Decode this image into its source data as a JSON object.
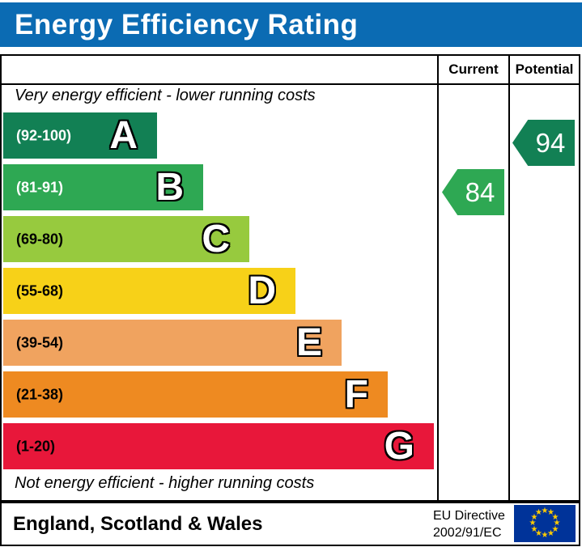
{
  "title": "Energy Efficiency Rating",
  "columns": {
    "current": "Current",
    "potential": "Potential"
  },
  "top_note": "Very energy efficient - lower running costs",
  "bottom_note": "Not energy efficient - higher running costs",
  "footer": {
    "region": "England, Scotland & Wales",
    "directive_line1": "EU Directive",
    "directive_line2": "2002/91/EC"
  },
  "colors": {
    "title_bar": "#0b6bb3",
    "eu_flag_bg": "#003399",
    "eu_flag_stars": "#ffcc00",
    "border": "#000000"
  },
  "chart_data": {
    "type": "bar",
    "title": "Energy Efficiency Rating",
    "categories": [
      "A",
      "B",
      "C",
      "D",
      "E",
      "F",
      "G"
    ],
    "bands": [
      {
        "letter": "A",
        "range_label": "(92-100)",
        "range_min": 92,
        "range_max": 100,
        "color": "#128054",
        "text_color": "#ffffff"
      },
      {
        "letter": "B",
        "range_label": "(81-91)",
        "range_min": 81,
        "range_max": 91,
        "color": "#2ea853",
        "text_color": "#ffffff"
      },
      {
        "letter": "C",
        "range_label": "(69-80)",
        "range_min": 69,
        "range_max": 80,
        "color": "#97ca3e",
        "text_color": "#000000"
      },
      {
        "letter": "D",
        "range_label": "(55-68)",
        "range_min": 55,
        "range_max": 68,
        "color": "#f7d118",
        "text_color": "#000000"
      },
      {
        "letter": "E",
        "range_label": "(39-54)",
        "range_min": 39,
        "range_max": 54,
        "color": "#f0a35f",
        "text_color": "#000000"
      },
      {
        "letter": "F",
        "range_label": "(21-38)",
        "range_min": 21,
        "range_max": 38,
        "color": "#ee8a21",
        "text_color": "#000000"
      },
      {
        "letter": "G",
        "range_label": "(1-20)",
        "range_min": 1,
        "range_max": 20,
        "color": "#e8173a",
        "text_color": "#000000"
      }
    ],
    "series": [
      {
        "name": "Current",
        "value": 84,
        "band": "B",
        "color": "#2ea853"
      },
      {
        "name": "Potential",
        "value": 94,
        "band": "A",
        "color": "#128054"
      }
    ],
    "annotations": [
      "Very energy efficient - lower running costs",
      "Not energy efficient - higher running costs"
    ],
    "legend_position": "none",
    "value_range": [
      1,
      100
    ]
  }
}
